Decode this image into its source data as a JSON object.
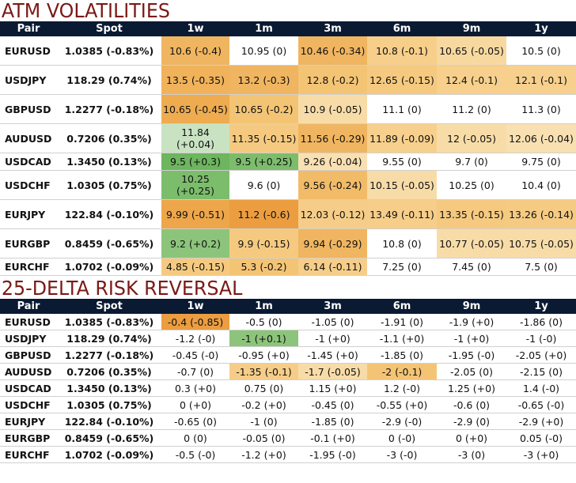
{
  "atm": {
    "title": "ATM VOLATILITIES",
    "headers": [
      "Pair",
      "Spot",
      "1w",
      "1m",
      "3m",
      "6m",
      "9m",
      "1y"
    ],
    "rows": [
      {
        "pair": "EURUSD",
        "spot": "1.0385 (-0.83%)",
        "cells": [
          {
            "text": "10.6 (-0.4)",
            "bg": "#f0b560"
          },
          {
            "text": "10.95 (0)",
            "bg": "#ffffff"
          },
          {
            "text": "10.46 (-0.34)",
            "bg": "#f0b560"
          },
          {
            "text": "10.8 (-0.1)",
            "bg": "#f7cf8a"
          },
          {
            "text": "10.65 (-0.05)",
            "bg": "#f7d9a0"
          },
          {
            "text": "10.5 (0)",
            "bg": "#ffffff"
          }
        ]
      },
      {
        "pair": "USDJPY",
        "spot": "118.29 (0.74%)",
        "cells": [
          {
            "text": "13.5 (-0.35)",
            "bg": "#f0b25a"
          },
          {
            "text": "13.2 (-0.3)",
            "bg": "#f0b560"
          },
          {
            "text": "12.8 (-0.2)",
            "bg": "#f4c475"
          },
          {
            "text": "12.65 (-0.15)",
            "bg": "#f5ca80"
          },
          {
            "text": "12.4 (-0.1)",
            "bg": "#f7d08d"
          },
          {
            "text": "12.1 (-0.1)",
            "bg": "#f7d08d"
          }
        ]
      },
      {
        "pair": "GBPUSD",
        "spot": "1.2277 (-0.18%)",
        "cells": [
          {
            "text": "10.65 (-0.45)",
            "bg": "#eeab50"
          },
          {
            "text": "10.65 (-0.2)",
            "bg": "#f4c475"
          },
          {
            "text": "10.9 (-0.05)",
            "bg": "#f8dca8"
          },
          {
            "text": "11.1 (0)",
            "bg": "#ffffff"
          },
          {
            "text": "11.2 (0)",
            "bg": "#ffffff"
          },
          {
            "text": "11.3 (0)",
            "bg": "#ffffff"
          }
        ]
      },
      {
        "pair": "AUDUSD",
        "spot": "0.7206 (0.35%)",
        "cells": [
          {
            "text": "11.84 (+0.04)",
            "bg": "#c9e3c2"
          },
          {
            "text": "11.35 (-0.15)",
            "bg": "#f5ca80"
          },
          {
            "text": "11.56 (-0.29)",
            "bg": "#f0b560"
          },
          {
            "text": "11.89 (-0.09)",
            "bg": "#f7d08d"
          },
          {
            "text": "12 (-0.05)",
            "bg": "#f8dca8"
          },
          {
            "text": "12.06 (-0.04)",
            "bg": "#f9e0b2"
          }
        ]
      },
      {
        "pair": "USDCAD",
        "spot": "1.3450 (0.13%)",
        "short": true,
        "cells": [
          {
            "text": "9.5 (+0.3)",
            "bg": "#6db55f"
          },
          {
            "text": "9.5 (+0.25)",
            "bg": "#7cbd6c"
          },
          {
            "text": "9.26 (-0.04)",
            "bg": "#f9e0b2"
          },
          {
            "text": "9.55 (0)",
            "bg": "#ffffff"
          },
          {
            "text": "9.7 (0)",
            "bg": "#ffffff"
          },
          {
            "text": "9.75 (0)",
            "bg": "#ffffff"
          }
        ]
      },
      {
        "pair": "USDCHF",
        "spot": "1.0305 (0.75%)",
        "cells": [
          {
            "text": "10.25 (+0.25)",
            "bg": "#7cbd6c"
          },
          {
            "text": "9.6 (0)",
            "bg": "#ffffff"
          },
          {
            "text": "9.56 (-0.24)",
            "bg": "#f2bb68"
          },
          {
            "text": "10.15 (-0.05)",
            "bg": "#f8dca8"
          },
          {
            "text": "10.25 (0)",
            "bg": "#ffffff"
          },
          {
            "text": "10.4 (0)",
            "bg": "#ffffff"
          }
        ]
      },
      {
        "pair": "EURJPY",
        "spot": "122.84 (-0.10%)",
        "cells": [
          {
            "text": "9.99 (-0.51)",
            "bg": "#eda64a"
          },
          {
            "text": "11.2 (-0.6)",
            "bg": "#eb9d40"
          },
          {
            "text": "12.03 (-0.12)",
            "bg": "#f6cd88"
          },
          {
            "text": "13.49 (-0.11)",
            "bg": "#f6ce8a"
          },
          {
            "text": "13.35 (-0.15)",
            "bg": "#f5ca80"
          },
          {
            "text": "13.26 (-0.14)",
            "bg": "#f5cb83"
          }
        ]
      },
      {
        "pair": "EURGBP",
        "spot": "0.8459 (-0.65%)",
        "cells": [
          {
            "text": "9.2 (+0.2)",
            "bg": "#8cc47b"
          },
          {
            "text": "9.9 (-0.15)",
            "bg": "#f5ca80"
          },
          {
            "text": "9.94 (-0.29)",
            "bg": "#f0b560"
          },
          {
            "text": "10.8 (0)",
            "bg": "#ffffff"
          },
          {
            "text": "10.77 (-0.05)",
            "bg": "#f8dca8"
          },
          {
            "text": "10.75 (-0.05)",
            "bg": "#f8dca8"
          }
        ]
      },
      {
        "pair": "EURCHF",
        "spot": "1.0702 (-0.09%)",
        "short": true,
        "cells": [
          {
            "text": "4.85 (-0.15)",
            "bg": "#f5ca80"
          },
          {
            "text": "5.3 (-0.2)",
            "bg": "#f4c475"
          },
          {
            "text": "6.14 (-0.11)",
            "bg": "#f6ce8a"
          },
          {
            "text": "7.25 (0)",
            "bg": "#ffffff"
          },
          {
            "text": "7.45 (0)",
            "bg": "#ffffff"
          },
          {
            "text": "7.5 (0)",
            "bg": "#ffffff"
          }
        ]
      }
    ]
  },
  "rr": {
    "title": "25-DELTA RISK REVERSAL",
    "headers": [
      "Pair",
      "Spot",
      "1w",
      "1m",
      "3m",
      "6m",
      "9m",
      "1y"
    ],
    "rows": [
      {
        "pair": "EURUSD",
        "spot": "1.0385 (-0.83%)",
        "cells": [
          {
            "text": "-0.4 (-0.85)",
            "bg": "#eb9d40"
          },
          {
            "text": "-0.5 (0)",
            "bg": "#ffffff"
          },
          {
            "text": "-1.05 (0)",
            "bg": "#ffffff"
          },
          {
            "text": "-1.91 (0)",
            "bg": "#ffffff"
          },
          {
            "text": "-1.9 (+0)",
            "bg": "#ffffff"
          },
          {
            "text": "-1.86 (0)",
            "bg": "#ffffff"
          }
        ]
      },
      {
        "pair": "USDJPY",
        "spot": "118.29 (0.74%)",
        "cells": [
          {
            "text": "-1.2 (-0)",
            "bg": "#ffffff"
          },
          {
            "text": "-1 (+0.1)",
            "bg": "#8cc47b"
          },
          {
            "text": "-1 (+0)",
            "bg": "#ffffff"
          },
          {
            "text": "-1.1 (+0)",
            "bg": "#ffffff"
          },
          {
            "text": "-1 (+0)",
            "bg": "#ffffff"
          },
          {
            "text": "-1 (-0)",
            "bg": "#ffffff"
          }
        ]
      },
      {
        "pair": "GBPUSD",
        "spot": "1.2277 (-0.18%)",
        "cells": [
          {
            "text": "-0.45 (-0)",
            "bg": "#ffffff"
          },
          {
            "text": "-0.95 (+0)",
            "bg": "#ffffff"
          },
          {
            "text": "-1.45 (+0)",
            "bg": "#ffffff"
          },
          {
            "text": "-1.85 (0)",
            "bg": "#ffffff"
          },
          {
            "text": "-1.95 (-0)",
            "bg": "#ffffff"
          },
          {
            "text": "-2.05 (+0)",
            "bg": "#ffffff"
          }
        ]
      },
      {
        "pair": "AUDUSD",
        "spot": "0.7206 (0.35%)",
        "cells": [
          {
            "text": "-0.7 (0)",
            "bg": "#ffffff"
          },
          {
            "text": "-1.35 (-0.1)",
            "bg": "#f6cd88"
          },
          {
            "text": "-1.7 (-0.05)",
            "bg": "#f8dca8"
          },
          {
            "text": "-2 (-0.1)",
            "bg": "#f4c475"
          },
          {
            "text": "-2.05 (0)",
            "bg": "#ffffff"
          },
          {
            "text": "-2.15 (0)",
            "bg": "#ffffff"
          }
        ]
      },
      {
        "pair": "USDCAD",
        "spot": "1.3450 (0.13%)",
        "cells": [
          {
            "text": "0.3 (+0)",
            "bg": "#ffffff"
          },
          {
            "text": "0.75 (0)",
            "bg": "#ffffff"
          },
          {
            "text": "1.15 (+0)",
            "bg": "#ffffff"
          },
          {
            "text": "1.2 (-0)",
            "bg": "#ffffff"
          },
          {
            "text": "1.25 (+0)",
            "bg": "#ffffff"
          },
          {
            "text": "1.4 (-0)",
            "bg": "#ffffff"
          }
        ]
      },
      {
        "pair": "USDCHF",
        "spot": "1.0305 (0.75%)",
        "cells": [
          {
            "text": "0 (+0)",
            "bg": "#ffffff"
          },
          {
            "text": "-0.2 (+0)",
            "bg": "#ffffff"
          },
          {
            "text": "-0.45 (0)",
            "bg": "#ffffff"
          },
          {
            "text": "-0.55 (+0)",
            "bg": "#ffffff"
          },
          {
            "text": "-0.6 (0)",
            "bg": "#ffffff"
          },
          {
            "text": "-0.65 (-0)",
            "bg": "#ffffff"
          }
        ]
      },
      {
        "pair": "EURJPY",
        "spot": "122.84 (-0.10%)",
        "cells": [
          {
            "text": "-0.65 (0)",
            "bg": "#ffffff"
          },
          {
            "text": "-1 (0)",
            "bg": "#ffffff"
          },
          {
            "text": "-1.85 (0)",
            "bg": "#ffffff"
          },
          {
            "text": "-2.9 (-0)",
            "bg": "#ffffff"
          },
          {
            "text": "-2.9 (0)",
            "bg": "#ffffff"
          },
          {
            "text": "-2.9 (+0)",
            "bg": "#ffffff"
          }
        ]
      },
      {
        "pair": "EURGBP",
        "spot": "0.8459 (-0.65%)",
        "cells": [
          {
            "text": "0 (0)",
            "bg": "#ffffff"
          },
          {
            "text": "-0.05 (0)",
            "bg": "#ffffff"
          },
          {
            "text": "-0.1 (+0)",
            "bg": "#ffffff"
          },
          {
            "text": "0 (-0)",
            "bg": "#ffffff"
          },
          {
            "text": "0 (+0)",
            "bg": "#ffffff"
          },
          {
            "text": "0.05 (-0)",
            "bg": "#ffffff"
          }
        ]
      },
      {
        "pair": "EURCHF",
        "spot": "1.0702 (-0.09%)",
        "cells": [
          {
            "text": "-0.5 (-0)",
            "bg": "#ffffff"
          },
          {
            "text": "-1.2 (+0)",
            "bg": "#ffffff"
          },
          {
            "text": "-1.95 (-0)",
            "bg": "#ffffff"
          },
          {
            "text": "-3 (-0)",
            "bg": "#ffffff"
          },
          {
            "text": "-3 (0)",
            "bg": "#ffffff"
          },
          {
            "text": "-3 (+0)",
            "bg": "#ffffff"
          }
        ]
      }
    ]
  },
  "colors": {
    "title": "#7a1a17",
    "header_bg": "#0a1a33",
    "header_text": "#ffffff"
  }
}
